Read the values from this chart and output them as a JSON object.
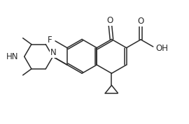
{
  "bg": "#ffffff",
  "lc": "#2a2a2a",
  "lw": 1.1,
  "fs": 7.5,
  "xlim": [
    -0.5,
    5.5
  ],
  "ylim": [
    -0.3,
    4.0
  ]
}
